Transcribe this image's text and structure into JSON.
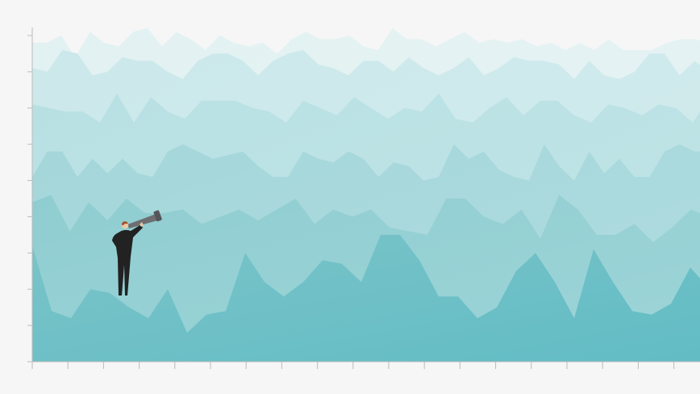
{
  "chart_data": {
    "type": "area",
    "title": "",
    "xlabel": "",
    "ylabel": "",
    "x_ticks": 19,
    "y_ticks": 10,
    "xlim": [
      0,
      18
    ],
    "ylim": [
      0,
      9
    ],
    "grid": false,
    "legend": "none",
    "series": [
      {
        "values": [
          3.2,
          1.4,
          1.2,
          2.0,
          1.9,
          1.5,
          1.2,
          2.0,
          0.8,
          1.3,
          1.4,
          3.0,
          2.2,
          1.8,
          2.2,
          2.8,
          2.7,
          2.2,
          3.5,
          3.5,
          2.8,
          1.8,
          1.8,
          1.2,
          1.5,
          2.5,
          3.0,
          2.2,
          1.2,
          3.1,
          2.2,
          1.4,
          1.3,
          1.6,
          2.6,
          2.0
        ]
      },
      {
        "values": [
          4.4,
          4.6,
          3.6,
          4.4,
          3.9,
          4.5,
          4.1,
          4.1,
          4.2,
          3.8,
          4.0,
          4.2,
          3.9,
          4.2,
          4.5,
          3.8,
          4.2,
          4.0,
          4.2,
          3.7,
          3.6,
          3.5,
          4.5,
          4.5,
          4.0,
          3.8,
          4.2,
          3.4,
          4.6,
          4.2,
          3.5,
          3.5,
          3.8,
          3.3,
          3.7,
          4.2,
          4.0
        ]
      },
      {
        "values": [
          5.1,
          5.8,
          5.8,
          5.1,
          5.6,
          5.2,
          5.6,
          5.2,
          5.1,
          5.8,
          6.0,
          5.8,
          5.6,
          5.7,
          5.8,
          5.4,
          5.1,
          5.1,
          5.8,
          5.6,
          5.5,
          5.8,
          5.6,
          5.1,
          5.5,
          5.4,
          5.0,
          5.1,
          6.0,
          5.6,
          5.8,
          5.3,
          5.1,
          5.0,
          6.0,
          5.4,
          5.0,
          5.8,
          5.2,
          5.6,
          5.1,
          5.1,
          5.8,
          6.0,
          5.8,
          5.8
        ]
      },
      {
        "values": [
          7.1,
          7.0,
          6.9,
          6.9,
          6.6,
          7.4,
          6.6,
          7.3,
          6.9,
          6.7,
          7.2,
          7.2,
          7.2,
          7.0,
          6.9,
          6.6,
          7.2,
          7.0,
          6.8,
          7.3,
          7.0,
          6.7,
          7.0,
          6.9,
          7.4,
          6.7,
          6.6,
          7.0,
          7.3,
          6.8,
          7.2,
          7.2,
          6.8,
          6.6,
          7.1,
          7.0,
          6.8,
          7.1,
          7.0,
          6.6,
          7.3
        ]
      },
      {
        "values": [
          8.1,
          8.0,
          8.6,
          8.5,
          7.9,
          8.0,
          8.4,
          8.3,
          8.3,
          8.0,
          7.8,
          8.3,
          8.5,
          8.5,
          8.3,
          7.9,
          8.3,
          8.5,
          8.6,
          8.2,
          8.1,
          7.9,
          8.3,
          8.3,
          8.0,
          8.4,
          8.1,
          7.9,
          8.1,
          8.4,
          7.9,
          8.1,
          8.4,
          8.3,
          8.3,
          8.2,
          7.8,
          8.3,
          7.9,
          7.8,
          8.0,
          8.5,
          8.5,
          7.9,
          8.3,
          8.0
        ]
      },
      {
        "values": [
          8.8,
          8.8,
          9.0,
          8.4,
          9.1,
          8.8,
          8.7,
          9.1,
          9.2,
          8.7,
          9.1,
          8.9,
          8.6,
          9.0,
          8.8,
          8.7,
          8.8,
          8.5,
          8.9,
          9.1,
          8.9,
          8.9,
          9.0,
          8.7,
          8.6,
          9.2,
          8.9,
          8.9,
          8.7,
          8.9,
          9.1,
          8.8,
          8.9,
          8.8,
          8.9,
          8.7,
          8.8,
          8.6,
          8.8,
          8.6,
          8.9,
          8.6,
          8.6,
          8.6,
          8.8,
          8.9,
          8.9,
          8.8
        ]
      }
    ],
    "colors": {
      "background": "#f6f6f6",
      "axis": "#bbbbbb",
      "layer_tops": [
        "#e2f1f2",
        "#cbe8ea",
        "#b8e0e3",
        "#a4d6da",
        "#8fcdd1",
        "#7ac4c9"
      ],
      "layer_bottoms": [
        "#e8f3f4",
        "#d3ecee",
        "#c2e5e7",
        "#b0dde0",
        "#9ed5d8",
        "#62bcc4"
      ]
    },
    "figure": {
      "icon": "person-with-telescope-icon",
      "suit_color": "#222222",
      "telescope_color": "#6e6e72",
      "hair_color": "#a4552b"
    }
  }
}
